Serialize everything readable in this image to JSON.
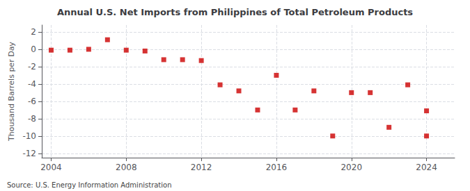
{
  "chart_data": {
    "type": "scatter",
    "title": "Annual U.S. Net Imports from Philippines of Total Petroleum Products",
    "ylabel": "Thousand Barrels per Day",
    "annotations": [
      "Source: U.S. Energy Information Administration"
    ],
    "x": [
      2004,
      2005,
      2006,
      2007,
      2008,
      2009,
      2010,
      2011,
      2012,
      2013,
      2014,
      2015,
      2016,
      2017,
      2018,
      2019,
      2020,
      2021,
      2022,
      2023,
      2024,
      2024
    ],
    "values": [
      -0.1,
      -0.1,
      0.0,
      1.1,
      -0.1,
      -0.2,
      -1.2,
      -1.2,
      -1.3,
      -4.1,
      -4.8,
      -7.0,
      -3.0,
      -7.0,
      -4.8,
      -10.0,
      -5.0,
      -5.0,
      -9.0,
      -4.1,
      -7.1,
      -10.0
    ],
    "color": "#cc0000",
    "marker": "square",
    "xlim": [
      2003.5,
      2025.5
    ],
    "xticks": [
      2004,
      2008,
      2012,
      2016,
      2020,
      2024
    ],
    "ylim": [
      -12.5,
      2.8
    ],
    "yticks": [
      2,
      0,
      -2,
      -4,
      -6,
      -8,
      -10,
      -12
    ],
    "grid": true
  }
}
